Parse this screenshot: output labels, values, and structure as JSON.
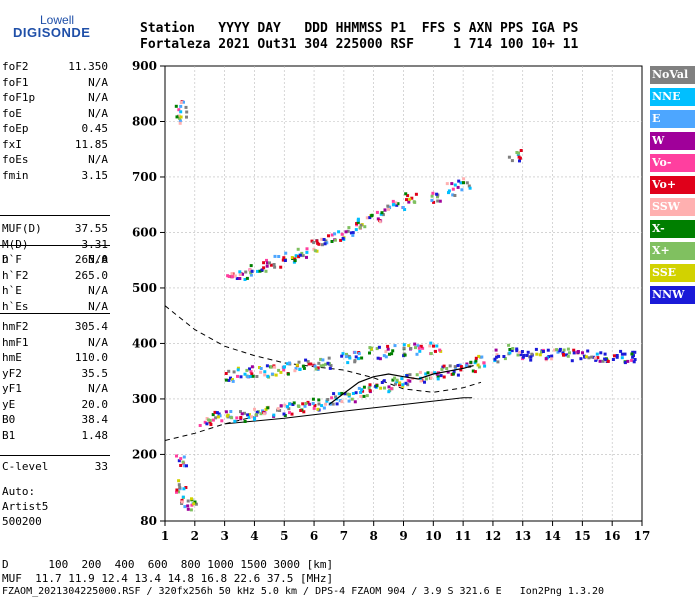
{
  "logo": {
    "line1": "Lowell",
    "line2": "DIGISONDE"
  },
  "header": {
    "row1": "Station   YYYY DAY   DDD HHMMSS P1  FFS S AXN PPS IGA PS",
    "row2": "Fortaleza 2021 Out31 304 225000 RSF     1 714 100 10+ 11"
  },
  "params_group1": [
    {
      "label": "foF2",
      "value": "11.350"
    },
    {
      "label": "foF1",
      "value": "N/A"
    },
    {
      "label": "foF1p",
      "value": "N/A"
    },
    {
      "label": "foE",
      "value": "N/A"
    },
    {
      "label": "foEp",
      "value": "0.45"
    },
    {
      "label": "fxI",
      "value": "11.85"
    },
    {
      "label": "foEs",
      "value": "N/A"
    },
    {
      "label": "fmin",
      "value": "3.15"
    }
  ],
  "params_group2": [
    {
      "label": "MUF(D)",
      "value": "37.55"
    },
    {
      "label": "M(D)",
      "value": "3.31"
    },
    {
      "label": "D",
      "value": "N/A"
    }
  ],
  "params_group3": [
    {
      "label": "h`F",
      "value": "265.0"
    },
    {
      "label": "h`F2",
      "value": "265.0"
    },
    {
      "label": "h`E",
      "value": "N/A"
    },
    {
      "label": "h`Es",
      "value": "N/A"
    }
  ],
  "params_group4": [
    {
      "label": "hmF2",
      "value": "305.4"
    },
    {
      "label": "hmF1",
      "value": "N/A"
    },
    {
      "label": "hmE",
      "value": "110.0"
    },
    {
      "label": "yF2",
      "value": "35.5"
    },
    {
      "label": "yF1",
      "value": "N/A"
    },
    {
      "label": "yE",
      "value": "20.0"
    },
    {
      "label": "B0",
      "value": "38.4"
    },
    {
      "label": "B1",
      "value": "1.48"
    }
  ],
  "params_group5": [
    {
      "label": "C-level",
      "value": "33"
    }
  ],
  "auto": {
    "line1": "Auto:",
    "line2": "Artist5",
    "line3": "500200"
  },
  "footer": {
    "d_row": "D      100  200  400  600  800 1000 1500 3000 [km]",
    "muf_row": "MUF  11.7 11.9 12.4 13.4 14.8 16.8 22.6 37.5 [MHz]",
    "file_row": "FZAOM_2021304225000.RSF / 320fx256h 50 kHz 5.0 km / DPS-4 FZAOM 904 / 3.9 S 321.6 E   Ion2Png 1.3.20"
  },
  "legend": [
    {
      "label": "NoVal",
      "color": "#808080"
    },
    {
      "label": "NNE",
      "color": "#00bfff"
    },
    {
      "label": "E",
      "color": "#4da6ff"
    },
    {
      "label": "W",
      "color": "#a0009a"
    },
    {
      "label": "Vo-",
      "color": "#ff3f9f"
    },
    {
      "label": "Vo+",
      "color": "#e0001a"
    },
    {
      "label": "SSW",
      "color": "#ffb0b0"
    },
    {
      "label": "X-",
      "color": "#007f00"
    },
    {
      "label": "X+",
      "color": "#80c060"
    },
    {
      "label": "SSE",
      "color": "#d2d200"
    },
    {
      "label": "NNW",
      "color": "#1a1ad8"
    }
  ],
  "chart_data": {
    "type": "scatter",
    "xlabel": "",
    "ylabel": "",
    "xlim": [
      1,
      17
    ],
    "ylim": [
      80,
      900
    ],
    "x_ticks": [
      "1",
      "2",
      "3",
      "4",
      "5",
      "6",
      "7",
      "8",
      "9",
      "10",
      "11",
      "12",
      "13",
      "14",
      "15",
      "16",
      "17"
    ],
    "y_ticks": [
      "900",
      "800",
      "700",
      "600",
      "500",
      "400",
      "300",
      "200",
      "80"
    ],
    "y_tick_values": [
      900,
      800,
      700,
      600,
      500,
      400,
      300,
      200,
      80
    ],
    "grid": true,
    "series": [
      {
        "values": [
          [
            1.5,
            830
          ],
          [
            1.5,
            805
          ],
          [
            1.5,
            190
          ],
          [
            1.5,
            145
          ],
          [
            1.7,
            115
          ],
          [
            1.9,
            112
          ],
          [
            2.3,
            265
          ],
          [
            2.7,
            268
          ],
          [
            3.2,
            270
          ],
          [
            3.6,
            272
          ],
          [
            4.0,
            275
          ],
          [
            4.4,
            278
          ],
          [
            4.8,
            281
          ],
          [
            5.2,
            285
          ],
          [
            5.6,
            288
          ],
          [
            6.0,
            292
          ],
          [
            6.4,
            296
          ],
          [
            6.8,
            302
          ],
          [
            7.2,
            308
          ],
          [
            7.6,
            314
          ],
          [
            8.0,
            320
          ],
          [
            8.4,
            326
          ],
          [
            8.8,
            332
          ],
          [
            9.2,
            338
          ],
          [
            9.6,
            343
          ],
          [
            10.0,
            348
          ],
          [
            10.4,
            352
          ],
          [
            10.8,
            356
          ],
          [
            11.2,
            362
          ],
          [
            11.5,
            370
          ],
          [
            12.7,
            740
          ]
        ]
      },
      {
        "values": [
          [
            3.2,
            345
          ],
          [
            3.6,
            348
          ],
          [
            4.0,
            350
          ],
          [
            4.4,
            352
          ],
          [
            4.8,
            355
          ],
          [
            5.2,
            358
          ],
          [
            5.6,
            362
          ],
          [
            6.0,
            365
          ],
          [
            6.4,
            368
          ],
          [
            7.0,
            375
          ],
          [
            7.5,
            380
          ],
          [
            8.0,
            385
          ],
          [
            8.5,
            388
          ],
          [
            9.0,
            390
          ],
          [
            9.5,
            392
          ],
          [
            10.0,
            395
          ]
        ]
      },
      {
        "values": [
          [
            3.2,
            520
          ],
          [
            3.6,
            528
          ],
          [
            4.0,
            535
          ],
          [
            4.4,
            542
          ],
          [
            4.8,
            550
          ],
          [
            5.2,
            558
          ],
          [
            5.6,
            568
          ],
          [
            6.0,
            578
          ],
          [
            6.4,
            588
          ],
          [
            6.8,
            598
          ],
          [
            7.2,
            608
          ],
          [
            7.6,
            620
          ],
          [
            8.0,
            632
          ],
          [
            8.4,
            642
          ],
          [
            8.8,
            652
          ],
          [
            9.2,
            664
          ],
          [
            10.1,
            666
          ],
          [
            10.6,
            680
          ],
          [
            11.0,
            690
          ]
        ]
      },
      {
        "values": [
          [
            12.2,
            380
          ],
          [
            12.6,
            390
          ],
          [
            13.0,
            385
          ],
          [
            13.4,
            382
          ],
          [
            13.8,
            380
          ],
          [
            14.2,
            385
          ],
          [
            14.6,
            382
          ],
          [
            15.0,
            380
          ],
          [
            15.4,
            378
          ],
          [
            15.8,
            375
          ],
          [
            16.2,
            378
          ],
          [
            16.6,
            380
          ]
        ]
      }
    ],
    "curves": {
      "dashed": [
        [
          1,
          468
        ],
        [
          2,
          425
        ],
        [
          3,
          395
        ],
        [
          4,
          378
        ],
        [
          5,
          365
        ],
        [
          6,
          358
        ],
        [
          7,
          352
        ],
        [
          8,
          338
        ],
        [
          9,
          318
        ],
        [
          10,
          312
        ],
        [
          11,
          320
        ],
        [
          11.6,
          330
        ]
      ],
      "dashed_lower": [
        [
          1,
          225
        ],
        [
          2,
          238
        ],
        [
          3,
          255
        ],
        [
          4,
          268
        ]
      ],
      "solid": [
        [
          3,
          255
        ],
        [
          5,
          265
        ],
        [
          7,
          278
        ],
        [
          9,
          290
        ],
        [
          10,
          296
        ],
        [
          11,
          302
        ],
        [
          11.3,
          302
        ]
      ],
      "profile": [
        [
          6.5,
          290
        ],
        [
          7,
          310
        ],
        [
          7.5,
          330
        ],
        [
          8,
          340
        ],
        [
          8.5,
          345
        ],
        [
          9,
          340
        ],
        [
          9.5,
          336
        ],
        [
          10,
          345
        ],
        [
          10.5,
          350
        ],
        [
          11,
          355
        ],
        [
          11.35,
          360
        ]
      ]
    }
  }
}
